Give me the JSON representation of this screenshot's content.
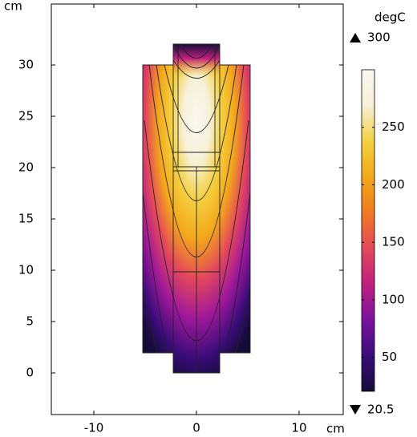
{
  "chart_data": {
    "type": "heatmap",
    "x_label": "cm",
    "y_label": "cm",
    "xlim": [
      -14.14,
      14.3
    ],
    "ylim": [
      -4.06,
      35.94
    ],
    "xticks": [
      -10,
      0,
      10
    ],
    "yticks": [
      0,
      5,
      10,
      15,
      20,
      25,
      30
    ],
    "colorbar": {
      "title": "degC",
      "max": 300,
      "min": 20.5,
      "ticks": [
        50,
        100,
        150,
        200,
        250
      ],
      "colors": [
        "#160c3a",
        "#3a0c7a",
        "#7a12a0",
        "#c0207e",
        "#e4485a",
        "#f07a22",
        "#f3a81a",
        "#f4d040",
        "#f6f1d8",
        "#faf8f2"
      ]
    }
  }
}
